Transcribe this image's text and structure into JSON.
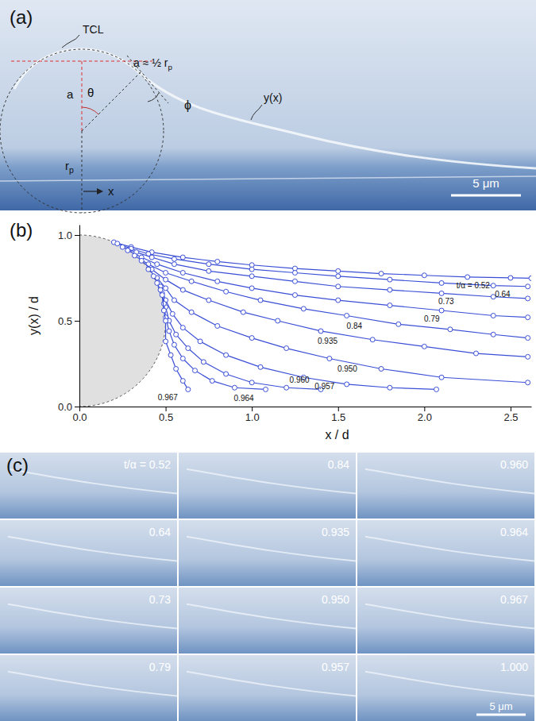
{
  "panel_a": {
    "label": "(a)",
    "annotations": [
      {
        "text": "TCL"
      },
      {
        "text": "a ≈ ½ r",
        "sub": "p"
      },
      {
        "text": "a"
      },
      {
        "text": "θ"
      },
      {
        "text": "r",
        "sub": "p"
      },
      {
        "text": "ϕ"
      },
      {
        "text": "y(x)"
      },
      {
        "text": "x"
      }
    ],
    "scale_bar": "5 μm"
  },
  "chart_data": {
    "type": "line",
    "title": "(b)",
    "x_label": "x / d",
    "y_label": "y(x) / d",
    "color": "#3a4ed6",
    "marker": "circle",
    "xlim": [
      0,
      2.62
    ],
    "ylim": [
      0,
      1.06
    ],
    "xticks": [
      {
        "value": 0,
        "label": "0.0"
      },
      {
        "value": 0.5,
        "label": "0.5"
      },
      {
        "value": 1,
        "label": "1.0"
      },
      {
        "value": 1.5,
        "label": "1.5"
      },
      {
        "value": 2,
        "label": "2.0"
      },
      {
        "value": 2.5,
        "label": "2.5"
      }
    ],
    "yticks": [
      {
        "value": 0,
        "label": "0.0"
      },
      {
        "value": 0.5,
        "label": "0.5"
      },
      {
        "value": 1,
        "label": "1.0"
      }
    ],
    "particle": {
      "x": 0,
      "y": 0.5,
      "radius": 0.5
    },
    "series": [
      {
        "name": "t/α = 0.52",
        "x": [
          0.2,
          0.3,
          0.42,
          0.6,
          0.8,
          1.0,
          1.25,
          1.5,
          1.75,
          2.0,
          2.25,
          2.5,
          2.62
        ],
        "values": [
          0.958,
          0.93,
          0.9,
          0.87,
          0.845,
          0.825,
          0.805,
          0.79,
          0.775,
          0.765,
          0.755,
          0.75,
          0.748
        ]
      },
      {
        "name": "0.64",
        "x": [
          0.22,
          0.3,
          0.4,
          0.55,
          0.75,
          1.0,
          1.25,
          1.5,
          1.8,
          2.1,
          2.4,
          2.6
        ],
        "values": [
          0.95,
          0.92,
          0.89,
          0.86,
          0.83,
          0.8,
          0.78,
          0.76,
          0.74,
          0.72,
          0.705,
          0.7
        ]
      },
      {
        "name": "0.73",
        "x": [
          0.25,
          0.33,
          0.42,
          0.55,
          0.75,
          1.0,
          1.25,
          1.5,
          1.8,
          2.1,
          2.4,
          2.6
        ],
        "values": [
          0.93,
          0.9,
          0.87,
          0.83,
          0.79,
          0.76,
          0.73,
          0.7,
          0.68,
          0.66,
          0.64,
          0.63
        ]
      },
      {
        "name": "0.79",
        "x": [
          0.28,
          0.36,
          0.45,
          0.6,
          0.8,
          1.0,
          1.25,
          1.5,
          1.8,
          2.1,
          2.4,
          2.6
        ],
        "values": [
          0.91,
          0.87,
          0.83,
          0.78,
          0.73,
          0.69,
          0.65,
          0.62,
          0.59,
          0.56,
          0.53,
          0.52
        ]
      },
      {
        "name": "0.84",
        "x": [
          0.32,
          0.4,
          0.5,
          0.65,
          0.85,
          1.05,
          1.3,
          1.55,
          1.85,
          2.15,
          2.4,
          2.6
        ],
        "values": [
          0.88,
          0.83,
          0.78,
          0.73,
          0.67,
          0.62,
          0.57,
          0.53,
          0.48,
          0.45,
          0.42,
          0.4
        ]
      },
      {
        "name": "0.935",
        "x": [
          0.36,
          0.42,
          0.5,
          0.6,
          0.75,
          0.95,
          1.15,
          1.4,
          1.7,
          2.0,
          2.3,
          2.6
        ],
        "values": [
          0.85,
          0.8,
          0.74,
          0.68,
          0.62,
          0.55,
          0.5,
          0.44,
          0.39,
          0.35,
          0.31,
          0.29
        ]
      },
      {
        "name": "0.950",
        "x": [
          0.4,
          0.45,
          0.5,
          0.55,
          0.65,
          0.8,
          1.0,
          1.2,
          1.45,
          1.75,
          2.1,
          2.6
        ],
        "values": [
          0.8,
          0.75,
          0.69,
          0.62,
          0.55,
          0.47,
          0.4,
          0.34,
          0.28,
          0.22,
          0.17,
          0.14
        ]
      },
      {
        "name": "0.957",
        "x": [
          0.43,
          0.47,
          0.5,
          0.54,
          0.6,
          0.7,
          0.85,
          1.05,
          1.3,
          1.55,
          1.8,
          2.07
        ],
        "values": [
          0.76,
          0.7,
          0.62,
          0.54,
          0.46,
          0.38,
          0.3,
          0.23,
          0.17,
          0.13,
          0.11,
          0.1
        ]
      },
      {
        "name": "0.960",
        "x": [
          0.45,
          0.48,
          0.5,
          0.52,
          0.56,
          0.63,
          0.72,
          0.85,
          1.0,
          1.2,
          1.4
        ],
        "values": [
          0.72,
          0.66,
          0.58,
          0.5,
          0.42,
          0.34,
          0.26,
          0.19,
          0.14,
          0.11,
          0.1
        ]
      },
      {
        "name": "0.964",
        "x": [
          0.47,
          0.49,
          0.5,
          0.52,
          0.55,
          0.6,
          0.67,
          0.77,
          0.9,
          1.08
        ],
        "values": [
          0.68,
          0.6,
          0.52,
          0.44,
          0.36,
          0.28,
          0.21,
          0.15,
          0.11,
          0.1
        ]
      },
      {
        "name": "0.967",
        "x": [
          0.48,
          0.49,
          0.5,
          0.5,
          0.53,
          0.56,
          0.6,
          0.63
        ],
        "values": [
          0.65,
          0.56,
          0.5,
          0.38,
          0.3,
          0.22,
          0.15,
          0.1
        ]
      }
    ]
  },
  "panel_c": {
    "label": "(c)",
    "frames": [
      "t/α = 0.52",
      "0.64",
      "0.73",
      "0.79",
      "0.84",
      "0.935",
      "0.950",
      "0.957",
      "0.960",
      "0.964",
      "0.967",
      "1.000"
    ],
    "scale_bar": "5 μm"
  }
}
